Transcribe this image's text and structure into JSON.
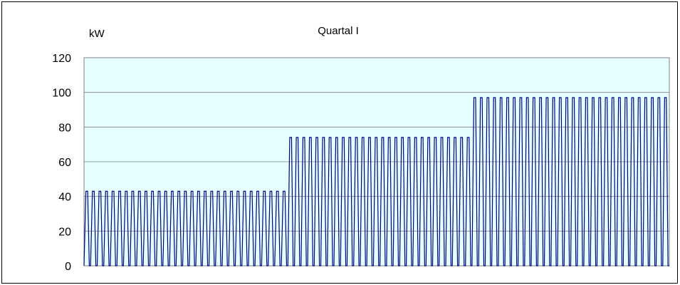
{
  "chart_data": {
    "type": "line",
    "title": "Quartal I",
    "ylabel": "kW",
    "xlabel": "",
    "ylim": [
      0,
      120
    ],
    "yticks": [
      0,
      20,
      40,
      60,
      80,
      100,
      120
    ],
    "grid": true,
    "legend": "none",
    "segments": [
      {
        "cycles": 31,
        "peak": 43
      },
      {
        "cycles": 28,
        "peak": 74
      },
      {
        "cycles": 30,
        "peak": 97
      }
    ],
    "baseline_value": 0,
    "colors": {
      "plot_background": "#E6FFFF",
      "line": "#000080",
      "grid": "#808080",
      "border": "#808080"
    }
  }
}
